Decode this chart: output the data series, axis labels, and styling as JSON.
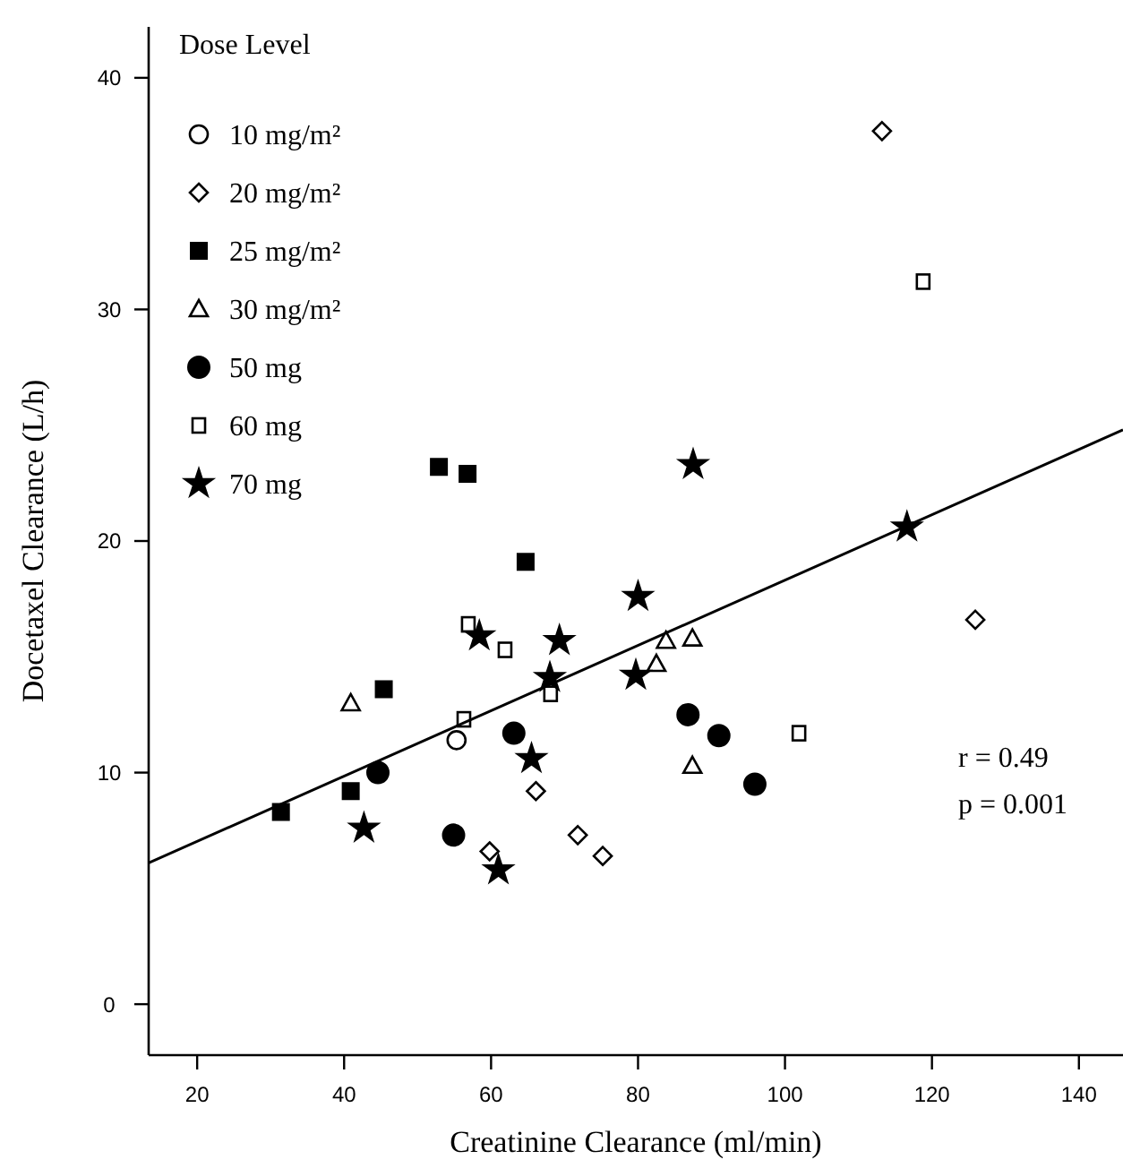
{
  "chart_data": {
    "type": "scatter",
    "xlabel": "Creatinine Clearance (ml/min)",
    "ylabel": "Docetaxel Clearance (L/h)",
    "legend_title": "Dose Level",
    "legend": "top left",
    "grid": false,
    "xlim": [
      13.4,
      146
    ],
    "xticks": [
      20,
      40,
      60,
      80,
      100,
      120,
      140
    ],
    "ylim": [
      -2.2,
      42.2
    ],
    "yticks": [
      0,
      10,
      20,
      30,
      40
    ],
    "annotations": [
      "r = 0.49",
      "p = 0.001"
    ],
    "series": [
      {
        "name": "10 mg/m²",
        "color": "#000000",
        "marker": "circle-open",
        "x": [
          55.3
        ],
        "values": [
          11.4
        ]
      },
      {
        "name": "20 mg/m²",
        "color": "#000000",
        "marker": "diamond-open",
        "x": [
          113.2,
          125.9,
          66.1,
          59.8,
          71.8,
          75.2
        ],
        "values": [
          37.7,
          16.6,
          9.2,
          6.6,
          7.3,
          6.4
        ]
      },
      {
        "name": "25 mg/m²",
        "color": "#000000",
        "marker": "square",
        "x": [
          52.9,
          56.8,
          64.7,
          45.4,
          40.9,
          31.4
        ],
        "values": [
          23.2,
          22.9,
          19.1,
          13.6,
          9.2,
          8.3
        ]
      },
      {
        "name": "30 mg/m²",
        "color": "#000000",
        "marker": "triangle-open",
        "x": [
          40.9,
          83.8,
          87.4,
          82.5,
          87.4
        ],
        "values": [
          13.0,
          15.7,
          15.8,
          14.7,
          10.3
        ]
      },
      {
        "name": "50 mg",
        "color": "#000000",
        "marker": "circle",
        "x": [
          44.6,
          54.9,
          63.1,
          86.8,
          91.0,
          95.9
        ],
        "values": [
          10.0,
          7.3,
          11.7,
          12.5,
          11.6,
          9.5
        ]
      },
      {
        "name": "60 mg",
        "color": "#000000",
        "marker": "square-open",
        "x": [
          118.8,
          56.9,
          61.9,
          56.3,
          68.1,
          101.9
        ],
        "values": [
          31.2,
          16.4,
          15.3,
          12.3,
          13.4,
          11.7
        ]
      },
      {
        "name": "70 mg",
        "color": "#000000",
        "marker": "star",
        "x": [
          87.5,
          116.6,
          58.4,
          69.3,
          68.0,
          80.0,
          79.7,
          65.5,
          42.7,
          61.0
        ],
        "values": [
          23.3,
          20.6,
          15.9,
          15.7,
          14.1,
          17.6,
          14.2,
          10.6,
          7.6,
          5.8
        ]
      },
      {
        "type": "line",
        "color": "#000000",
        "marker": "none",
        "x": [
          13.4,
          146
        ],
        "values": [
          6.1,
          24.8
        ]
      }
    ]
  }
}
